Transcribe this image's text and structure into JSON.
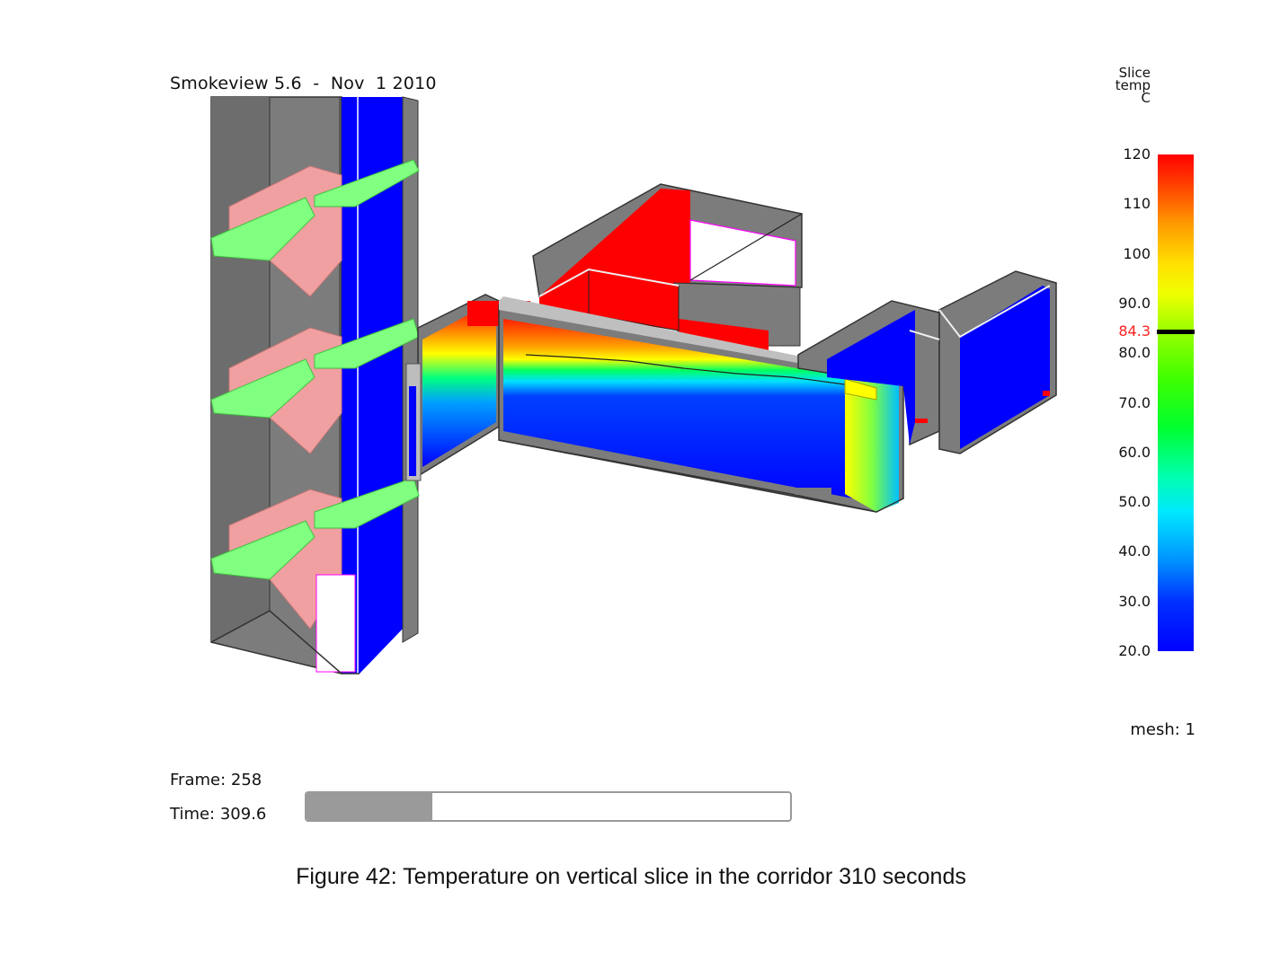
{
  "app": {
    "title": "Smokeview 5.6  -  Nov  1 2010"
  },
  "legend": {
    "heading": [
      "Slice",
      "temp",
      "C"
    ],
    "ticks": [
      "120",
      "110",
      "100",
      "90.0",
      "80.0",
      "70.0",
      "60.0",
      "50.0",
      "40.0",
      "30.0",
      "20.0"
    ],
    "min": 20,
    "max": 120,
    "current_value": 84.3,
    "current_label": "84.3",
    "current_color": "#ff2020"
  },
  "mesh": {
    "label": "mesh: 1"
  },
  "playback": {
    "frame_label": "Frame: 258",
    "time_label": "Time: 309.6",
    "progress_fraction": 0.26
  },
  "caption": "Figure 42: Temperature on vertical slice in the corridor 310 seconds",
  "colors": {
    "wall": "#7c7c7c",
    "slice_hot": "#ff0000",
    "slice_cold": "#0000ff",
    "stair": "#f0a0a0",
    "landing": "#80ff80",
    "frame_gray": "#9a9a9a"
  }
}
